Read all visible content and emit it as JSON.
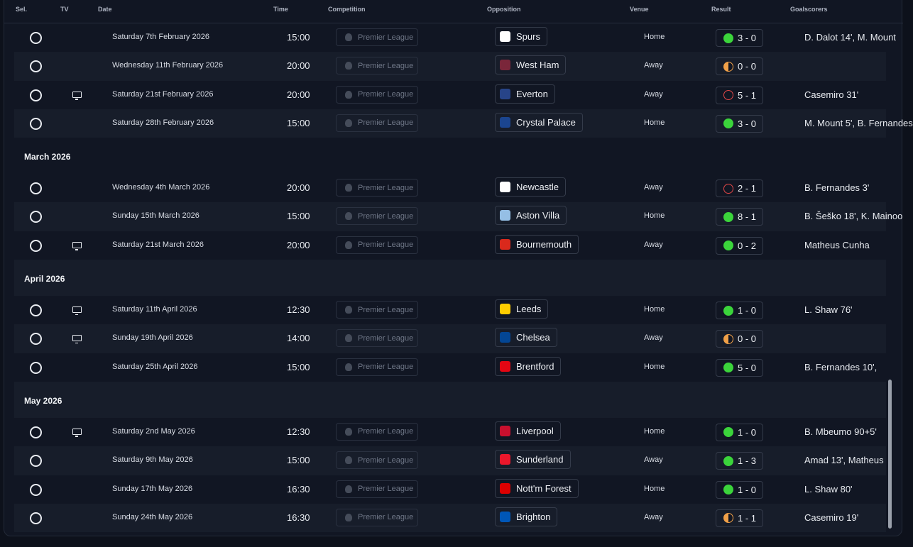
{
  "header": {
    "sel": "Sel.",
    "tv": "TV",
    "date": "Date",
    "time": "Time",
    "competition": "Competition",
    "opposition": "Opposition",
    "venue": "Venue",
    "result": "Result",
    "goalscorers": "Goalscorers"
  },
  "groups": [
    {
      "month": "",
      "fixtures": [
        {
          "tv": false,
          "date": "Saturday 7th February 2026",
          "time": "15:00",
          "competition": "Premier League",
          "opposition": "Spurs",
          "crest": "#ffffff",
          "venue": "Home",
          "outcome": "win",
          "score": "3 - 0",
          "scorers": "D. Dalot 14', M. Mount"
        },
        {
          "tv": false,
          "date": "Wednesday 11th February 2026",
          "time": "20:00",
          "competition": "Premier League",
          "opposition": "West Ham",
          "crest": "#7a263a",
          "venue": "Away",
          "outcome": "draw",
          "score": "0 - 0",
          "scorers": ""
        },
        {
          "tv": true,
          "date": "Saturday 21st February 2026",
          "time": "20:00",
          "competition": "Premier League",
          "opposition": "Everton",
          "crest": "#274488",
          "venue": "Away",
          "outcome": "loss",
          "score": "5 - 1",
          "scorers": "Casemiro 31'"
        },
        {
          "tv": false,
          "date": "Saturday 28th February 2026",
          "time": "15:00",
          "competition": "Premier League",
          "opposition": "Crystal Palace",
          "crest": "#1b458f",
          "venue": "Home",
          "outcome": "win",
          "score": "3 - 0",
          "scorers": "M. Mount 5', B. Fernandes"
        }
      ]
    },
    {
      "month": "March 2026",
      "fixtures": [
        {
          "tv": false,
          "date": "Wednesday 4th March 2026",
          "time": "20:00",
          "competition": "Premier League",
          "opposition": "Newcastle",
          "crest": "#ffffff",
          "venue": "Away",
          "outcome": "loss",
          "score": "2 - 1",
          "scorers": "B. Fernandes 3'"
        },
        {
          "tv": false,
          "date": "Sunday 15th March 2026",
          "time": "15:00",
          "competition": "Premier League",
          "opposition": "Aston Villa",
          "crest": "#95bfe5",
          "venue": "Home",
          "outcome": "win",
          "score": "8 - 1",
          "scorers": "B. Šeško 18', K. Mainoo"
        },
        {
          "tv": true,
          "date": "Saturday 21st March 2026",
          "time": "20:00",
          "competition": "Premier League",
          "opposition": "Bournemouth",
          "crest": "#da291c",
          "venue": "Away",
          "outcome": "win",
          "score": "0 - 2",
          "scorers": "Matheus Cunha"
        }
      ]
    },
    {
      "month": "April 2026",
      "fixtures": [
        {
          "tv": true,
          "date": "Saturday 11th April 2026",
          "time": "12:30",
          "competition": "Premier League",
          "opposition": "Leeds",
          "crest": "#ffcd00",
          "venue": "Home",
          "outcome": "win",
          "score": "1 - 0",
          "scorers": "L. Shaw 76'"
        },
        {
          "tv": true,
          "date": "Sunday 19th April 2026",
          "time": "14:00",
          "competition": "Premier League",
          "opposition": "Chelsea",
          "crest": "#034694",
          "venue": "Away",
          "outcome": "draw",
          "score": "0 - 0",
          "scorers": ""
        },
        {
          "tv": false,
          "date": "Saturday 25th April 2026",
          "time": "15:00",
          "competition": "Premier League",
          "opposition": "Brentford",
          "crest": "#e30613",
          "venue": "Home",
          "outcome": "win",
          "score": "5 - 0",
          "scorers": "B. Fernandes 10',"
        }
      ]
    },
    {
      "month": "May 2026",
      "fixtures": [
        {
          "tv": true,
          "date": "Saturday 2nd May 2026",
          "time": "12:30",
          "competition": "Premier League",
          "opposition": "Liverpool",
          "crest": "#c8102e",
          "venue": "Home",
          "outcome": "win",
          "score": "1 - 0",
          "scorers": "B. Mbeumo 90+5'"
        },
        {
          "tv": false,
          "date": "Saturday 9th May 2026",
          "time": "15:00",
          "competition": "Premier League",
          "opposition": "Sunderland",
          "crest": "#eb172b",
          "venue": "Away",
          "outcome": "win",
          "score": "1 - 3",
          "scorers": "Amad 13', Matheus"
        },
        {
          "tv": false,
          "date": "Sunday 17th May 2026",
          "time": "16:30",
          "competition": "Premier League",
          "opposition": "Nott'm Forest",
          "crest": "#dd0000",
          "venue": "Home",
          "outcome": "win",
          "score": "1 - 0",
          "scorers": "L. Shaw 80'"
        },
        {
          "tv": false,
          "date": "Sunday 24th May 2026",
          "time": "16:30",
          "competition": "Premier League",
          "opposition": "Brighton",
          "crest": "#0057b8",
          "venue": "Away",
          "outcome": "draw",
          "score": "1 - 1",
          "scorers": "Casemiro 19'"
        }
      ]
    }
  ],
  "colors": {
    "win": "#3bd43b",
    "loss": "#e24747",
    "draw": "#f0a048",
    "background": "#111623",
    "row_alt": "#171d2a"
  }
}
